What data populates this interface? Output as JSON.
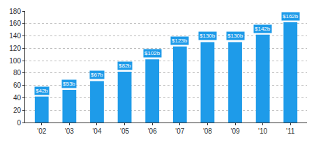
{
  "chart_data": {
    "type": "bar",
    "categories": [
      "'02",
      "'03",
      "'04",
      "'05",
      "'06",
      "'07",
      "'08",
      "'09",
      "'10",
      "'11"
    ],
    "values": [
      42,
      53,
      67,
      82,
      102,
      123,
      130,
      130,
      142,
      162
    ],
    "value_labels": [
      "$42b",
      "$53b",
      "$67b",
      "$82b",
      "$102b",
      "$123b",
      "$130b",
      "$130b",
      "$142b",
      "$162b"
    ],
    "color": "#1e9be9",
    "ylim": [
      0,
      180
    ],
    "yticks": [
      0,
      20,
      40,
      60,
      80,
      100,
      120,
      140,
      160,
      180
    ],
    "grid": true,
    "data_labels": true
  }
}
